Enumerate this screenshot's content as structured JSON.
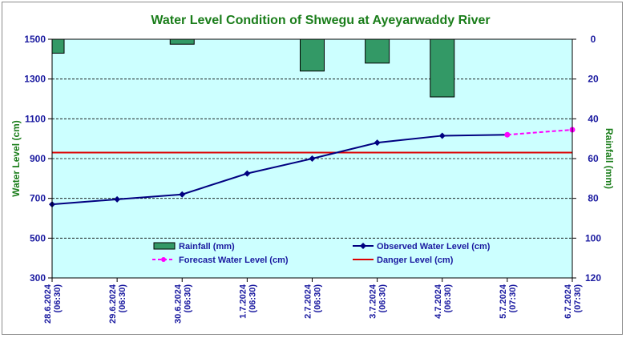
{
  "chart_data": {
    "type": "line",
    "title": "Water Level Condition of Shwegu at Ayeyarwaddy River",
    "ylabel": "Water Level (cm)",
    "y2label": "Rainfall (mm)",
    "ylim": [
      300,
      1500
    ],
    "y_ticks": [
      "300",
      "500",
      "700",
      "900",
      "1100",
      "1300",
      "1500"
    ],
    "y2lim": [
      0,
      120
    ],
    "y2_reversed": true,
    "y2_ticks": [
      "0",
      "20",
      "40",
      "60",
      "80",
      "100",
      "120"
    ],
    "categories": [
      [
        "28.6.2024",
        "(06:30)"
      ],
      [
        "29.6.2024",
        "(06:30)"
      ],
      [
        "30.6.2024",
        "(06:30)"
      ],
      [
        "1.7.2024",
        "(06:30)"
      ],
      [
        "2.7.2024",
        "(06:30)"
      ],
      [
        "3.7.2024",
        "(06:30)"
      ],
      [
        "4.7.2024",
        "(06:30)"
      ],
      [
        "5.7.2024",
        "(07:30)"
      ],
      [
        "6.7.2024",
        "(07:30)"
      ]
    ],
    "rainfall": [
      7,
      0,
      2.5,
      0,
      16,
      12,
      29,
      0,
      0
    ],
    "observed": [
      670,
      695,
      720,
      825,
      900,
      980,
      1015,
      1020,
      null
    ],
    "forecast": [
      null,
      null,
      null,
      null,
      null,
      null,
      null,
      1020,
      1045
    ],
    "danger_level": 930,
    "legend": {
      "rainfall": "Rainfall (mm)",
      "observed": "Observed Water Level (cm)",
      "forecast": "Forecast Water Level (cm)",
      "danger": "Danger Level (cm)"
    },
    "colors": {
      "plot_bg": "#ccffff",
      "rain_fill": "#339966",
      "observed": "#000080",
      "forecast": "#ff00ff",
      "danger": "#dd0000",
      "title": "#1a7d1a",
      "tick": "#1a1aa0"
    },
    "grid": "dashed horizontal",
    "legend_position": "bottom-inside"
  }
}
